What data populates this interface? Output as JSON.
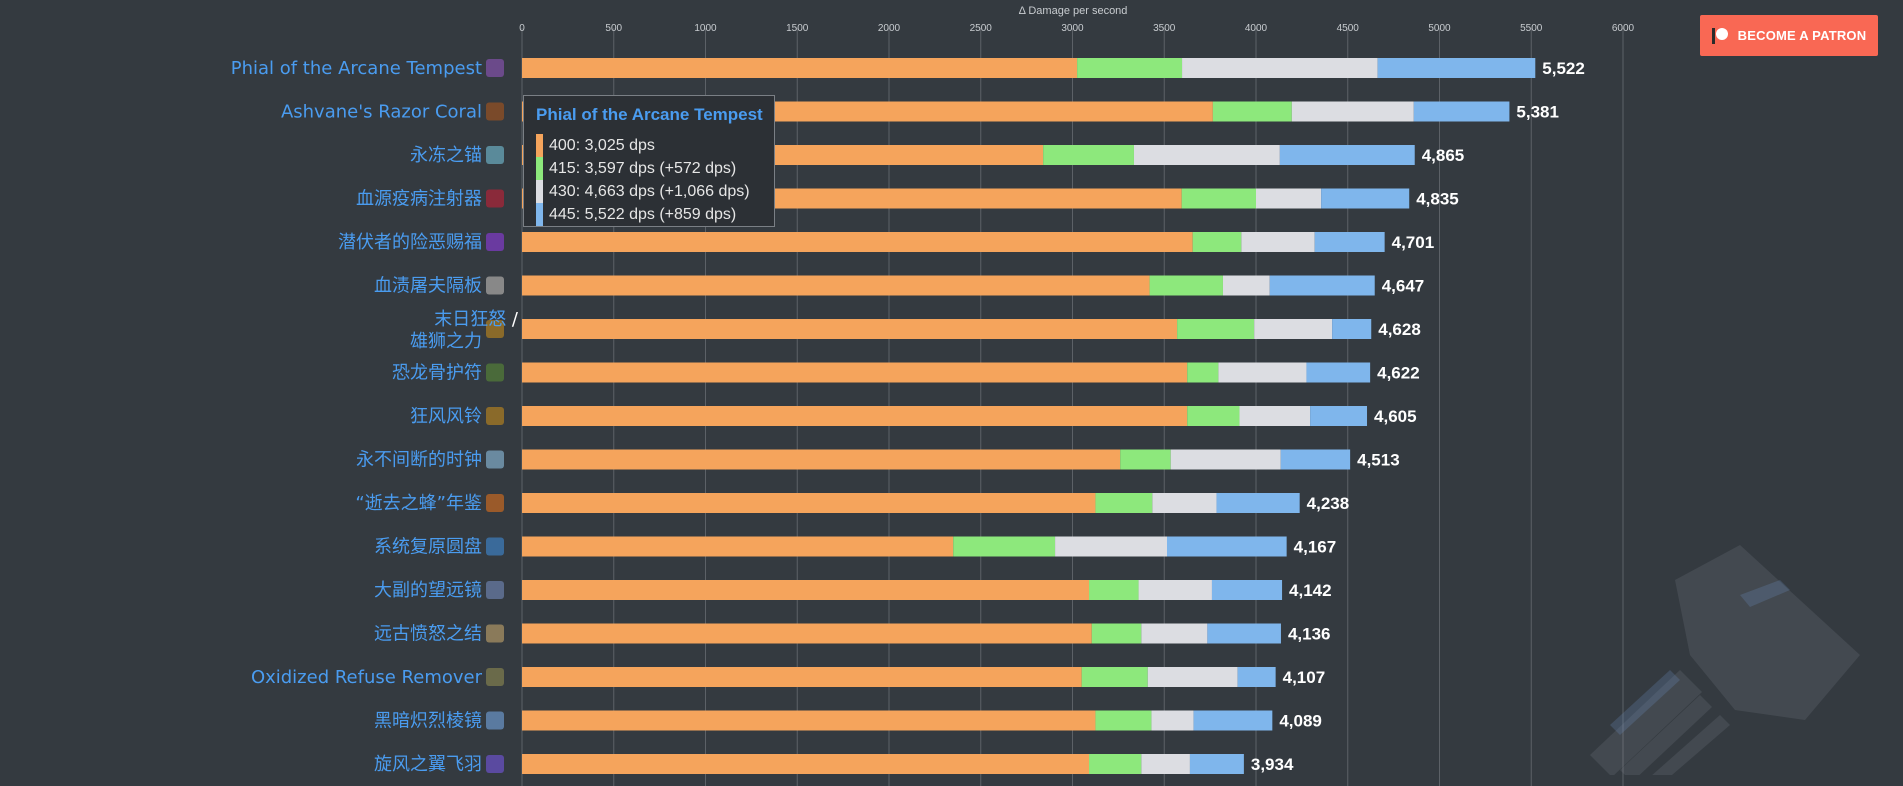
{
  "patron_button": {
    "label": "BECOME A PATRON",
    "color": "#f96854"
  },
  "colors": {
    "background": "#343a40",
    "link": "#4a9cf0",
    "series": [
      "#f5a45c",
      "#8de87c",
      "#dcdde2",
      "#7fb6ec"
    ]
  },
  "tooltip": {
    "title": "Phial of the Arcane Tempest",
    "rows": [
      {
        "text": "400:  3,025 dps",
        "color": "#f5a45c"
      },
      {
        "text": "415:  3,597 dps (+572 dps)",
        "color": "#8de87c"
      },
      {
        "text": "430:  4,663 dps (+1,066 dps)",
        "color": "#dcdde2"
      },
      {
        "text": "445:  5,522 dps (+859 dps)",
        "color": "#7fb6ec"
      }
    ]
  },
  "chart_data": {
    "type": "bar",
    "orientation": "horizontal",
    "stacked": true,
    "title": "",
    "xlabel": "Δ Damage per second",
    "ylabel": "",
    "xlim": [
      0,
      6000
    ],
    "xticks": [
      0,
      500,
      1000,
      1500,
      2000,
      2500,
      3000,
      3500,
      4000,
      4500,
      5000,
      5500,
      6000
    ],
    "grid": true,
    "categories": [
      "Phial of the Arcane Tempest",
      "Ashvane's Razor Coral",
      "永冻之锚",
      "血源疫病注射器",
      "潜伏者的险恶赐福",
      "血渍屠夫隔板",
      "末日狂怒 / 雄狮之力",
      "恐龙骨护符",
      "狂风风铃",
      "永不间断的时钟",
      "“逝去之蜂”年鉴",
      "系统复原圆盘",
      "大副的望远镜",
      "远古愤怒之结",
      "Oxidized Refuse Remover",
      "黑暗炽烈棱镜",
      "旋风之翼飞羽"
    ],
    "series": [
      {
        "name": "400",
        "color": "#f5a45c",
        "values": [
          3025,
          3765,
          2840,
          3595,
          3655,
          3420,
          3570,
          3625,
          3625,
          3260,
          3125,
          2350,
          3090,
          3105,
          3050,
          3125,
          3090
        ]
      },
      {
        "name": "415",
        "color": "#8de87c",
        "values": [
          572,
          430,
          495,
          405,
          265,
          400,
          420,
          170,
          285,
          275,
          310,
          555,
          270,
          270,
          360,
          305,
          285
        ]
      },
      {
        "name": "430",
        "color": "#dcdde2",
        "values": [
          1066,
          665,
          795,
          355,
          400,
          255,
          425,
          480,
          385,
          600,
          350,
          610,
          400,
          360,
          490,
          230,
          265
        ]
      },
      {
        "name": "445",
        "color": "#7fb6ec",
        "values": [
          859,
          521,
          735,
          480,
          381,
          572,
          213,
          347,
          310,
          378,
          453,
          652,
          382,
          401,
          207,
          429,
          294
        ]
      }
    ],
    "totals": [
      "5,522",
      "5,381",
      "4,865",
      "4,835",
      "4,701",
      "4,647",
      "4,628",
      "4,622",
      "4,605",
      "4,513",
      "4,238",
      "4,167",
      "4,142",
      "4,136",
      "4,107",
      "4,089",
      "3,934"
    ],
    "icons": [
      "arcane-phial-icon",
      "razor-coral-icon",
      "frozen-anchor-icon",
      "plague-injector-icon",
      "purple-orb-icon",
      "butcher-slab-icon",
      "wrathful-fury-icon",
      "dino-charm-icon",
      "wind-chime-icon",
      "clock-icon",
      "bee-almanac-icon",
      "blue-disk-icon",
      "spyglass-icon",
      "ancient-knot-icon",
      "refuse-remover-icon",
      "dark-prism-icon",
      "feather-icon"
    ]
  }
}
